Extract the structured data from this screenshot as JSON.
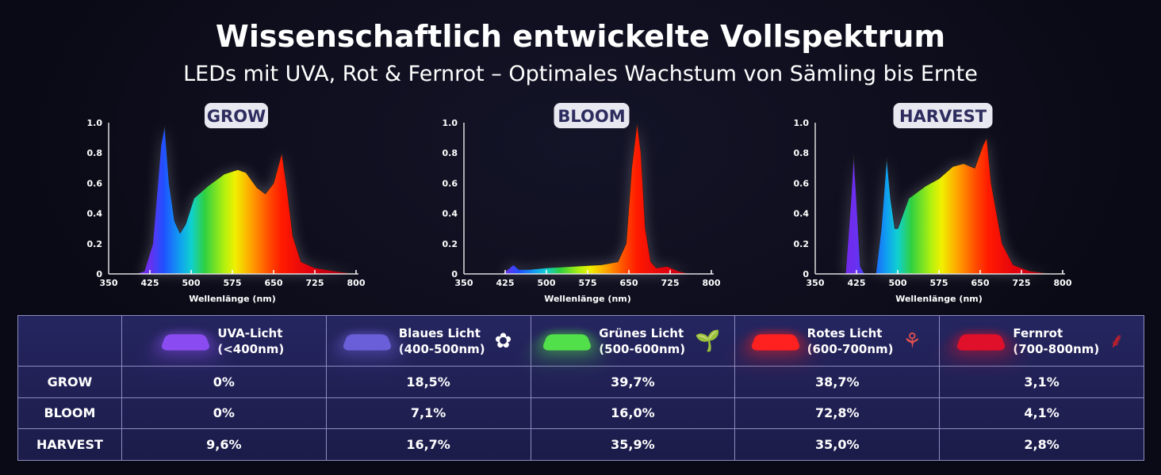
{
  "header": {
    "title": "Wissenschaftlich entwickelte Vollspektrum",
    "subtitle": "LEDs mit UVA, Rot & Fernrot – Optimales Wachstum von Sämling bis Ernte"
  },
  "chart_data": [
    {
      "type": "area",
      "title": "GROW",
      "xlabel": "Wellenlänge (nm)",
      "ylabel": "",
      "xlim": [
        350,
        800
      ],
      "ylim": [
        0,
        1
      ],
      "xticks": [
        350,
        425,
        500,
        575,
        650,
        725,
        800
      ],
      "yticks": [
        "0",
        "0.2",
        "0.4",
        "0.6",
        "0.8",
        "1.0"
      ],
      "x": [
        400,
        415,
        430,
        445,
        452,
        460,
        470,
        480,
        490,
        505,
        530,
        560,
        585,
        600,
        620,
        635,
        650,
        665,
        675,
        685,
        700,
        725,
        760,
        800
      ],
      "y": [
        0,
        0.02,
        0.2,
        0.85,
        0.98,
        0.6,
        0.35,
        0.27,
        0.33,
        0.5,
        0.58,
        0.66,
        0.69,
        0.67,
        0.57,
        0.53,
        0.6,
        0.8,
        0.55,
        0.25,
        0.08,
        0.04,
        0.02,
        0
      ]
    },
    {
      "type": "area",
      "title": "BLOOM",
      "xlabel": "Wellenlänge (nm)",
      "ylabel": "",
      "xlim": [
        350,
        800
      ],
      "ylim": [
        0,
        1
      ],
      "xticks": [
        350,
        425,
        500,
        575,
        650,
        725,
        800
      ],
      "yticks": [
        "0",
        "0.2",
        "0.4",
        "0.6",
        "0.8",
        "1.0"
      ],
      "x": [
        420,
        440,
        450,
        470,
        500,
        550,
        600,
        630,
        645,
        655,
        665,
        672,
        680,
        690,
        700,
        720,
        740,
        760
      ],
      "y": [
        0,
        0.06,
        0.03,
        0.03,
        0.04,
        0.05,
        0.06,
        0.08,
        0.2,
        0.7,
        1.0,
        0.8,
        0.3,
        0.08,
        0.04,
        0.05,
        0.02,
        0
      ]
    },
    {
      "type": "area",
      "title": "HARVEST",
      "xlabel": "Wellenlänge (nm)",
      "ylabel": "",
      "xlim": [
        350,
        800
      ],
      "ylim": [
        0,
        1
      ],
      "xticks": [
        350,
        425,
        500,
        575,
        650,
        725,
        800
      ],
      "yticks": [
        "0",
        "0.2",
        "0.4",
        "0.6",
        "0.8",
        "1.0"
      ],
      "x": [
        405,
        415,
        420,
        425,
        432,
        440,
        460,
        470,
        480,
        487,
        495,
        500,
        520,
        550,
        575,
        600,
        620,
        640,
        655,
        662,
        670,
        690,
        710,
        740,
        780
      ],
      "y": [
        0,
        0.5,
        0.79,
        0.5,
        0.05,
        0,
        0,
        0.3,
        0.77,
        0.5,
        0.3,
        0.3,
        0.5,
        0.58,
        0.63,
        0.71,
        0.73,
        0.7,
        0.85,
        0.9,
        0.6,
        0.2,
        0.06,
        0.02,
        0
      ]
    }
  ],
  "table": {
    "columns": [
      {
        "label1": "UVA-Licht",
        "label2": "(<400nm)",
        "color": "#8a4cf0",
        "icon": ""
      },
      {
        "label1": "Blaues Licht",
        "label2": "(400-500nm)",
        "color": "#6a5fd8",
        "icon": "flower-icon"
      },
      {
        "label1": "Grünes Licht",
        "label2": "(500-600nm)",
        "color": "#52e04a",
        "icon": "sprout-icon"
      },
      {
        "label1": "Rotes Licht",
        "label2": "(600-700nm)",
        "color": "#ff2020",
        "icon": "plant-icon"
      },
      {
        "label1": "Fernrot",
        "label2": "(700-800nm)",
        "color": "#e0102a",
        "icon": "branch-icon"
      }
    ],
    "rows": [
      {
        "name": "GROW",
        "values": [
          "0%",
          "18,5%",
          "39,7%",
          "38,7%",
          "3,1%"
        ]
      },
      {
        "name": "BLOOM",
        "values": [
          "0%",
          "7,1%",
          "16,0%",
          "72,8%",
          "4,1%"
        ]
      },
      {
        "name": "HARVEST",
        "values": [
          "9,6%",
          "16,7%",
          "35,9%",
          "35,0%",
          "2,8%"
        ]
      }
    ]
  }
}
